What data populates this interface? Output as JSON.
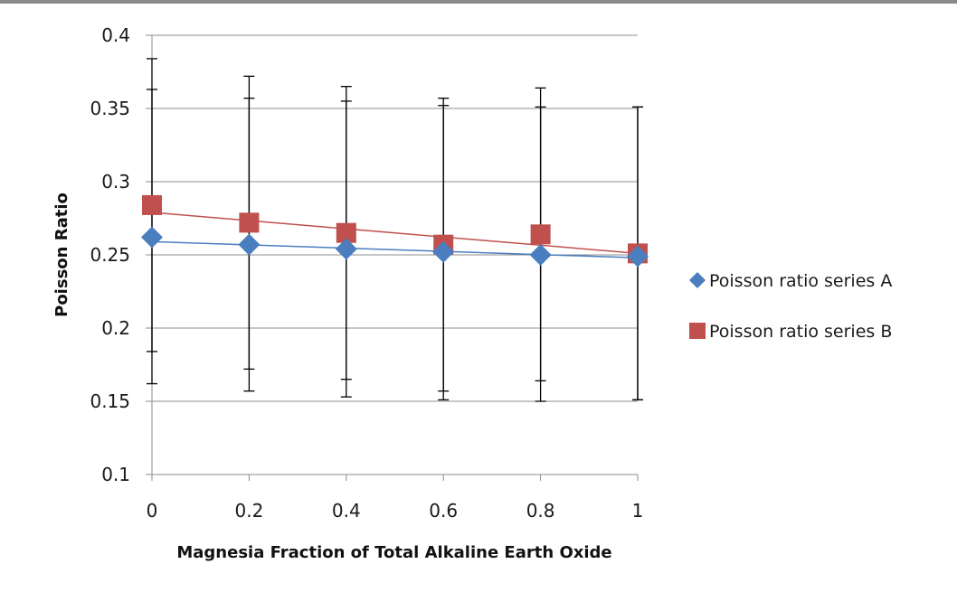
{
  "chart_data": {
    "type": "scatter",
    "title": "",
    "xlabel": "Magnesia Fraction of Total Alkaline Earth Oxide",
    "ylabel": "Poisson Ratio",
    "x": [
      0,
      0.2,
      0.4,
      0.6,
      0.8,
      1
    ],
    "xlim": [
      0,
      1
    ],
    "ylim": [
      0.1,
      0.4
    ],
    "x_ticks": [
      "0",
      "0.2",
      "0.4",
      "0.6",
      "0.8",
      "1"
    ],
    "y_ticks": [
      "0.1",
      "0.15",
      "0.2",
      "0.25",
      "0.3",
      "0.35",
      "0.4"
    ],
    "grid": "horizontal",
    "legend_position": "right",
    "series": [
      {
        "name": "Poisson ratio series A",
        "marker": "diamond",
        "color": "#4a7ebf",
        "values": [
          0.262,
          0.257,
          0.254,
          0.252,
          0.25,
          0.249
        ],
        "error_low": [
          0.162,
          0.157,
          0.153,
          0.151,
          0.15,
          0.151
        ],
        "error_high": [
          0.363,
          0.357,
          0.355,
          0.352,
          0.351,
          0.351
        ],
        "trendline": {
          "y_start": 0.259,
          "y_end": 0.248,
          "color": "#4a7ebf"
        }
      },
      {
        "name": "Poisson ratio series B",
        "marker": "square",
        "color": "#c0504d",
        "values": [
          0.284,
          0.272,
          0.265,
          0.257,
          0.264,
          0.251
        ],
        "error_low": [
          0.184,
          0.172,
          0.165,
          0.157,
          0.164,
          0.151
        ],
        "error_high": [
          0.384,
          0.372,
          0.365,
          0.357,
          0.364,
          0.351
        ],
        "trendline": {
          "y_start": 0.279,
          "y_end": 0.251,
          "color": "#c0504d"
        }
      }
    ]
  },
  "colors": {
    "gridline": "#8c8c8c",
    "axis": "#8c8c8c",
    "error_bar": "#000000",
    "top_border": "#8a8a8a"
  }
}
